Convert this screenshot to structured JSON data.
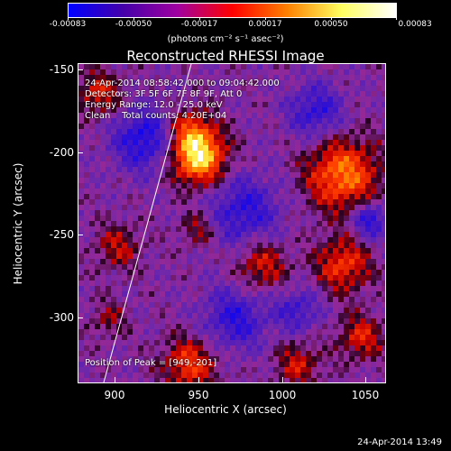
{
  "colorbar": {
    "ticks": [
      "-0.00083",
      "-0.00050",
      "-0.00017",
      "0.00017",
      "0.00050",
      "0.00083"
    ],
    "unit": "(photons cm⁻² s⁻¹ asec⁻²)",
    "colors": [
      "#0000ff",
      "#4400aa",
      "#a000a0",
      "#ff0000",
      "#ff8000",
      "#ffff60",
      "#ffffff"
    ]
  },
  "title": "Reconstructed RHESSI Image",
  "annotations": {
    "line1": "24-Apr-2014 08:58:42.000 to 09:04:42.000",
    "line2": "Detectors: 3F 5F 6F 7F 8F 9F, Att 0",
    "line3": "Energy Range: 12.0 - 25.0 keV",
    "line4": "Clean    Total counts: 4.20E+04",
    "peak": "Position of Peak = [949,-201]"
  },
  "axes": {
    "xlabel": "Heliocentric X (arcsec)",
    "ylabel": "Heliocentric Y (arcsec)",
    "xticks": [
      "900",
      "950",
      "1000",
      "1050"
    ],
    "yticks": [
      "-150",
      "-200",
      "-250",
      "-300"
    ]
  },
  "timestamp": "24-Apr-2014 13:49"
}
